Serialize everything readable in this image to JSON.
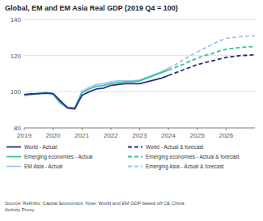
{
  "chart_data": {
    "type": "line",
    "title": "Global, EM and EM Asia Real GDP (2019 Q4 = 100)",
    "source": "Source: Refinitiv, Capital Economics. Note: World and EM GDP based off CE China\nActivity Proxy.",
    "x": [
      2019.0,
      2019.25,
      2019.5,
      2019.75,
      2020.0,
      2020.25,
      2020.5,
      2020.75,
      2021.0,
      2021.25,
      2021.5,
      2021.75,
      2022.0,
      2022.25,
      2022.5,
      2022.75,
      2023.0,
      2023.25,
      2023.5,
      2023.75,
      2024.0,
      2024.25,
      2024.5,
      2024.75,
      2025.0,
      2025.25,
      2025.5,
      2025.75,
      2026.0,
      2026.25,
      2026.5,
      2026.75,
      2027.0
    ],
    "xlim": [
      2019.0,
      2027.0
    ],
    "xticks": [
      2019,
      2020,
      2021,
      2022,
      2023,
      2024,
      2025,
      2026
    ],
    "ylim": [
      80,
      140
    ],
    "yticks": [
      80,
      100,
      120,
      140
    ],
    "grid": true,
    "legend": "bottom",
    "series": [
      {
        "name": "World - Actual",
        "color": "#2c2c8a",
        "line_style": "solid",
        "values": [
          98.5,
          98.8,
          99.0,
          99.2,
          99.0,
          95.0,
          91.0,
          90.5,
          98.0,
          100.0,
          101.5,
          102.0,
          103.5,
          104.0,
          104.5,
          104.5,
          104.5,
          105.5,
          106.5,
          107.5,
          109.0,
          null,
          null,
          null,
          null,
          null,
          null,
          null,
          null,
          null,
          null,
          null,
          null
        ]
      },
      {
        "name": "World - Actual & forecast",
        "color": "#2c2c8a",
        "line_style": "dashed",
        "values": [
          null,
          null,
          null,
          null,
          null,
          null,
          null,
          null,
          null,
          null,
          null,
          null,
          null,
          null,
          null,
          null,
          null,
          null,
          null,
          null,
          109.0,
          110.5,
          112.0,
          113.5,
          115.0,
          116.0,
          117.0,
          118.0,
          119.0,
          119.5,
          120.0,
          120.2,
          120.5
        ]
      },
      {
        "name": "Emerging economies - Actual",
        "color": "#2dc990",
        "line_style": "solid",
        "values": [
          98.0,
          98.5,
          99.0,
          99.5,
          99.0,
          94.0,
          91.5,
          91.0,
          99.5,
          101.5,
          103.0,
          103.5,
          104.5,
          105.0,
          105.5,
          105.5,
          106.0,
          107.5,
          109.0,
          110.5,
          112.0,
          null,
          null,
          null,
          null,
          null,
          null,
          null,
          null,
          null,
          null,
          null,
          null
        ]
      },
      {
        "name": "Emerging economies - Actual & forecast",
        "color": "#2dc990",
        "line_style": "dashed",
        "values": [
          null,
          null,
          null,
          null,
          null,
          null,
          null,
          null,
          null,
          null,
          null,
          null,
          null,
          null,
          null,
          null,
          null,
          null,
          null,
          null,
          112.0,
          113.5,
          115.0,
          117.0,
          118.5,
          120.0,
          121.0,
          122.5,
          123.5,
          124.0,
          124.5,
          124.8,
          125.0
        ]
      },
      {
        "name": "EM Asia - Actual",
        "color": "#a0c4f0",
        "line_style": "solid",
        "values": [
          98.0,
          98.5,
          99.0,
          99.5,
          98.5,
          93.5,
          91.0,
          91.0,
          100.0,
          102.5,
          104.0,
          104.5,
          105.5,
          106.0,
          106.0,
          106.0,
          106.5,
          108.0,
          109.5,
          111.0,
          113.0,
          null,
          null,
          null,
          null,
          null,
          null,
          null,
          null,
          null,
          null,
          null,
          null
        ]
      },
      {
        "name": "Emerging Asia - Actual & forecast",
        "color": "#a0c4f0",
        "line_style": "dashed",
        "values": [
          null,
          null,
          null,
          null,
          null,
          null,
          null,
          null,
          null,
          null,
          null,
          null,
          null,
          null,
          null,
          null,
          null,
          null,
          null,
          null,
          113.0,
          115.0,
          117.5,
          120.0,
          122.0,
          124.0,
          126.0,
          128.0,
          129.5,
          130.0,
          130.5,
          130.8,
          131.0
        ]
      }
    ]
  }
}
